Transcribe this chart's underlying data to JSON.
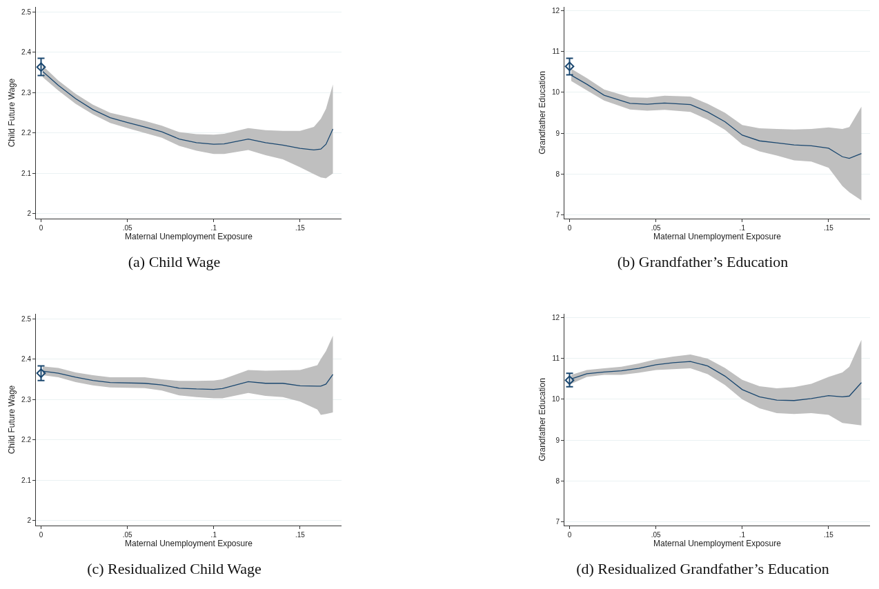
{
  "chart_data": [
    {
      "type": "line",
      "title": "(a) Child Wage",
      "xlabel": "Maternal Unemployment Exposure",
      "ylabel": "Child Future Wage",
      "xlim": [
        -0.003,
        0.174
      ],
      "ylim": [
        1.988,
        2.512
      ],
      "xticks": [
        {
          "value": 0,
          "label": "0"
        },
        {
          "value": 0.05,
          "label": ".05"
        },
        {
          "value": 0.1,
          "label": ".1"
        },
        {
          "value": 0.15,
          "label": ".15"
        }
      ],
      "yticks": [
        2,
        2.1,
        2.2,
        2.3,
        2.4,
        2.5
      ],
      "grid": "y",
      "series": [
        {
          "type": "line",
          "color": "#1a476f",
          "x": [
            0.001,
            0.01,
            0.02,
            0.03,
            0.04,
            0.05,
            0.06,
            0.07,
            0.08,
            0.09,
            0.1,
            0.106,
            0.12,
            0.13,
            0.14,
            0.15,
            0.158,
            0.162,
            0.165,
            0.169
          ],
          "values": [
            2.352,
            2.318,
            2.285,
            2.258,
            2.238,
            2.226,
            2.215,
            2.203,
            2.185,
            2.176,
            2.172,
            2.173,
            2.185,
            2.176,
            2.17,
            2.162,
            2.158,
            2.16,
            2.172,
            2.21
          ],
          "lower": [
            2.338,
            2.305,
            2.272,
            2.246,
            2.225,
            2.212,
            2.2,
            2.188,
            2.168,
            2.156,
            2.148,
            2.148,
            2.158,
            2.145,
            2.135,
            2.115,
            2.098,
            2.09,
            2.088,
            2.1
          ],
          "upper": [
            2.366,
            2.33,
            2.297,
            2.27,
            2.25,
            2.24,
            2.23,
            2.218,
            2.202,
            2.197,
            2.196,
            2.198,
            2.212,
            2.207,
            2.205,
            2.205,
            2.215,
            2.235,
            2.26,
            2.32
          ]
        },
        {
          "type": "scatter",
          "color": "#1a476f",
          "marker": "diamond",
          "x": [
            0
          ],
          "values": [
            2.363
          ],
          "errors": [
            [
              2.342,
              2.385
            ]
          ]
        }
      ]
    },
    {
      "type": "line",
      "title": "(b) Grandfather’s Education",
      "xlabel": "Maternal Unemployment Exposure",
      "ylabel": "Grandfather Education",
      "xlim": [
        -0.003,
        0.174
      ],
      "ylim": [
        6.9,
        12.1
      ],
      "xticks": [
        {
          "value": 0,
          "label": "0"
        },
        {
          "value": 0.05,
          "label": ".05"
        },
        {
          "value": 0.1,
          "label": ".1"
        },
        {
          "value": 0.15,
          "label": ".15"
        }
      ],
      "yticks": [
        7,
        8,
        9,
        10,
        11,
        12
      ],
      "grid": "y",
      "series": [
        {
          "type": "line",
          "color": "#1a476f",
          "x": [
            0.001,
            0.01,
            0.02,
            0.035,
            0.045,
            0.055,
            0.07,
            0.08,
            0.09,
            0.1,
            0.11,
            0.12,
            0.13,
            0.14,
            0.15,
            0.158,
            0.162,
            0.169
          ],
          "values": [
            10.42,
            10.2,
            9.93,
            9.73,
            9.71,
            9.74,
            9.7,
            9.52,
            9.28,
            8.95,
            8.81,
            8.76,
            8.71,
            8.69,
            8.63,
            8.42,
            8.38,
            8.5
          ],
          "lower": [
            10.28,
            10.05,
            9.8,
            9.58,
            9.55,
            9.57,
            9.52,
            9.33,
            9.08,
            8.72,
            8.55,
            8.45,
            8.33,
            8.3,
            8.15,
            7.7,
            7.55,
            7.35
          ],
          "upper": [
            10.58,
            10.35,
            10.07,
            9.88,
            9.87,
            9.92,
            9.9,
            9.72,
            9.5,
            9.2,
            9.12,
            9.1,
            9.09,
            9.1,
            9.14,
            9.1,
            9.15,
            9.65
          ]
        },
        {
          "type": "scatter",
          "color": "#1a476f",
          "marker": "diamond",
          "x": [
            0
          ],
          "values": [
            10.64
          ],
          "errors": [
            [
              10.43,
              10.84
            ]
          ]
        }
      ]
    },
    {
      "type": "line",
      "title": "(c) Residualized Child Wage",
      "xlabel": "Maternal Unemployment Exposure",
      "ylabel": "Child Future Wage",
      "xlim": [
        -0.003,
        0.174
      ],
      "ylim": [
        1.988,
        2.512
      ],
      "xticks": [
        {
          "value": 0,
          "label": "0"
        },
        {
          "value": 0.05,
          "label": ".05"
        },
        {
          "value": 0.1,
          "label": ".1"
        },
        {
          "value": 0.15,
          "label": ".15"
        }
      ],
      "yticks": [
        2,
        2.1,
        2.2,
        2.3,
        2.4,
        2.5
      ],
      "grid": "y",
      "series": [
        {
          "type": "line",
          "color": "#1a476f",
          "x": [
            0.001,
            0.01,
            0.02,
            0.03,
            0.04,
            0.06,
            0.07,
            0.08,
            0.09,
            0.1,
            0.105,
            0.12,
            0.13,
            0.14,
            0.15,
            0.16,
            0.162,
            0.165,
            0.169
          ],
          "values": [
            2.37,
            2.365,
            2.355,
            2.347,
            2.342,
            2.34,
            2.336,
            2.328,
            2.326,
            2.325,
            2.327,
            2.344,
            2.34,
            2.34,
            2.334,
            2.333,
            2.333,
            2.338,
            2.362
          ],
          "lower": [
            2.36,
            2.355,
            2.343,
            2.335,
            2.33,
            2.328,
            2.322,
            2.31,
            2.306,
            2.303,
            2.303,
            2.316,
            2.309,
            2.306,
            2.295,
            2.275,
            2.262,
            2.264,
            2.268
          ],
          "upper": [
            2.382,
            2.378,
            2.367,
            2.36,
            2.355,
            2.355,
            2.35,
            2.346,
            2.346,
            2.347,
            2.35,
            2.373,
            2.371,
            2.372,
            2.373,
            2.385,
            2.4,
            2.42,
            2.458
          ]
        },
        {
          "type": "scatter",
          "color": "#1a476f",
          "marker": "diamond",
          "x": [
            0
          ],
          "values": [
            2.365
          ],
          "errors": [
            [
              2.347,
              2.383
            ]
          ]
        }
      ]
    },
    {
      "type": "line",
      "title": "(d) Residualized Grandfather’s Education",
      "xlabel": "Maternal Unemployment Exposure",
      "ylabel": "Grandfather Education",
      "xlim": [
        -0.003,
        0.174
      ],
      "ylim": [
        6.9,
        12.1
      ],
      "xticks": [
        {
          "value": 0,
          "label": "0"
        },
        {
          "value": 0.05,
          "label": ".05"
        },
        {
          "value": 0.1,
          "label": ".1"
        },
        {
          "value": 0.15,
          "label": ".15"
        }
      ],
      "yticks": [
        7,
        8,
        9,
        10,
        11,
        12
      ],
      "grid": "y",
      "series": [
        {
          "type": "line",
          "color": "#1a476f",
          "x": [
            0.001,
            0.01,
            0.02,
            0.03,
            0.04,
            0.05,
            0.06,
            0.07,
            0.08,
            0.09,
            0.1,
            0.11,
            0.12,
            0.13,
            0.14,
            0.15,
            0.158,
            0.162,
            0.169
          ],
          "values": [
            10.5,
            10.63,
            10.67,
            10.7,
            10.76,
            10.85,
            10.9,
            10.93,
            10.82,
            10.57,
            10.24,
            10.06,
            9.98,
            9.97,
            10.02,
            10.09,
            10.06,
            10.08,
            10.41
          ],
          "lower": [
            10.38,
            10.55,
            10.6,
            10.6,
            10.65,
            10.72,
            10.74,
            10.76,
            10.62,
            10.35,
            10.0,
            9.78,
            9.66,
            9.64,
            9.66,
            9.62,
            9.42,
            9.4,
            9.36
          ],
          "upper": [
            10.6,
            10.72,
            10.76,
            10.8,
            10.88,
            10.98,
            11.05,
            11.1,
            11.0,
            10.77,
            10.48,
            10.32,
            10.27,
            10.3,
            10.38,
            10.55,
            10.66,
            10.8,
            11.46
          ]
        },
        {
          "type": "scatter",
          "color": "#1a476f",
          "marker": "diamond",
          "x": [
            0
          ],
          "values": [
            10.47
          ],
          "errors": [
            [
              10.31,
              10.64
            ]
          ]
        }
      ]
    }
  ]
}
